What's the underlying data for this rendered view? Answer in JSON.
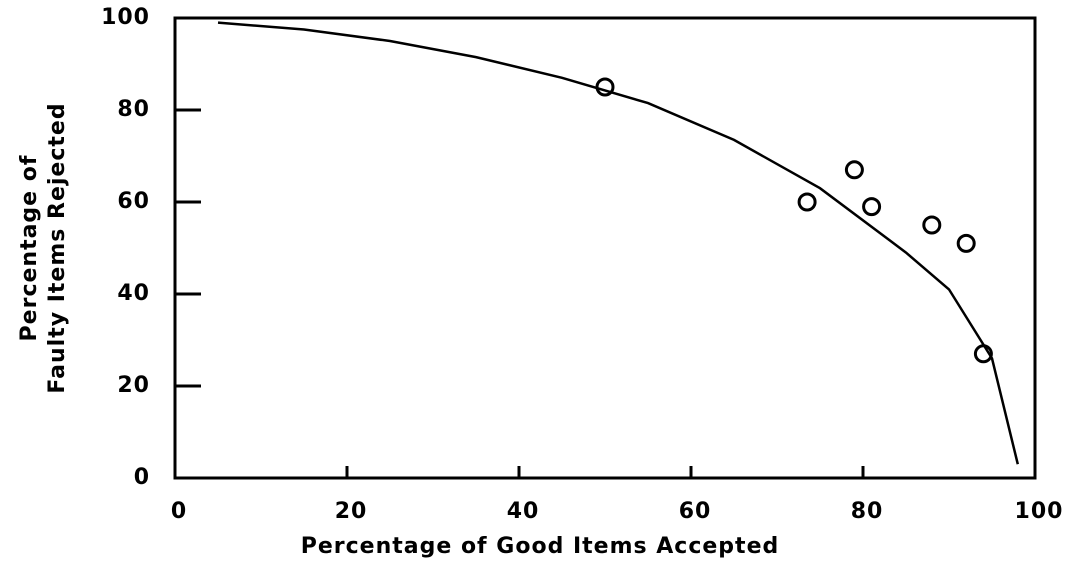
{
  "chart_data": {
    "type": "scatter",
    "xlabel": "Percentage of Good Items Accepted",
    "ylabel": [
      "Percentage of",
      "Faulty Items Rejected"
    ],
    "points": {
      "x": [
        50,
        73.5,
        79,
        81,
        88,
        92,
        94
      ],
      "y": [
        85,
        60,
        67,
        59,
        55,
        51,
        27
      ]
    },
    "curve": {
      "x": [
        5,
        15,
        25,
        35,
        45,
        55,
        65,
        75,
        85,
        90,
        95,
        98
      ],
      "y": [
        99,
        97.5,
        95,
        91.5,
        87,
        81.5,
        73.5,
        63,
        49,
        41,
        26,
        3
      ]
    },
    "xlim": [
      0,
      100
    ],
    "ylim": [
      0,
      100
    ],
    "xticks": [
      0,
      20,
      40,
      60,
      80,
      100
    ],
    "yticks": [
      0,
      20,
      40,
      60,
      80,
      100
    ],
    "color": "#000000"
  }
}
